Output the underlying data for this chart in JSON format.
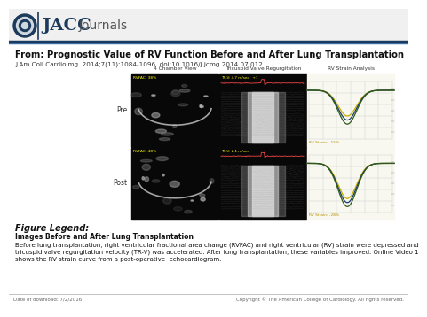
{
  "bg_color": "#ffffff",
  "header_bg": "#f5f5f5",
  "from_title": "From: Prognostic Value of RV Function Before and After Lung Transplantation",
  "citation": "J Am Coll Cardiolmg. 2014;7(11):1084-1096. doi:10.1016/j.jcmg.2014.07.012",
  "figure_legend_header": "Figure Legend:",
  "legend_line1": "Images Before and After Lung Transplantation",
  "legend_body": "Before lung transplantation, right ventricular fractional area change (RVFAC) and right ventricular (RV) strain were depressed and\ntricuspid valve regurgitation velocity (TR-V) was accelerated. After lung transplantation, these variables improved. Online Video 1\nshows the RV strain curve from a post-operative  echocardiogram.",
  "footer_left": "Date of download: 7/2/2016",
  "footer_right": "Copyright © The American College of Cardiology. All rights reserved.",
  "col_labels": [
    "4 Chamber View",
    "Tricuspid Valve Regurgitation",
    "RV Strain Analysis"
  ],
  "row_labels": [
    "Pre",
    "Post"
  ],
  "pre_rvfac": "RVFAC: 38%",
  "post_rvfac": "RVFAC: 48%",
  "pre_trv": "TR-V: 4.7 m/sec   +1",
  "post_trv": "TR-V: 2.1 m/sec",
  "pre_strain": "RV Strain: -15%",
  "post_strain": "RV Strain: -28%"
}
